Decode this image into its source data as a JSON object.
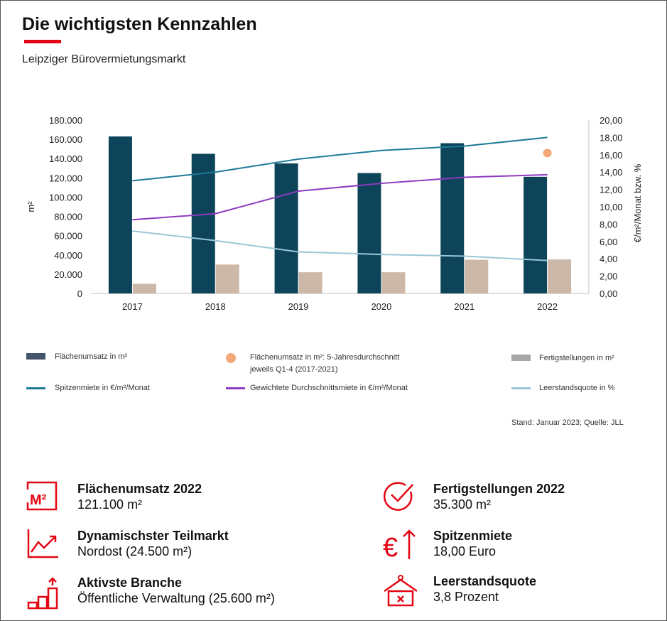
{
  "header": {
    "title": "Die wichtigsten Kennzahlen",
    "subtitle": "Leipziger Bürovermietungsmarkt"
  },
  "colors": {
    "accent": "#e30613",
    "flaechenumsatz": "#0d4459",
    "fertigstellungen": "#cdb8a8",
    "spitzenmiete": "#1e7a98",
    "durchschnittsmiete": "#8d3bc0",
    "leerstand": "#9ac7d6",
    "average_marker": "#f2a878"
  },
  "chart_data": {
    "type": "bar",
    "categories": [
      "2017",
      "2018",
      "2019",
      "2020",
      "2021",
      "2022"
    ],
    "ylabel_left": "m²",
    "ylabel_right": "€/m²/Monat bzw. %",
    "left_ticks": [
      "180.000",
      "160.000",
      "140.000",
      "120.000",
      "100.000",
      "80.000",
      "60.000",
      "40.000",
      "20.000",
      "0"
    ],
    "right_ticks": [
      "20,00",
      "18,00",
      "16,00",
      "14,00",
      "12,00",
      "10,00",
      "8,00",
      "6,00",
      "4,00",
      "2,00",
      "0,00"
    ],
    "ylim_left": [
      0,
      180000
    ],
    "ylim_right": [
      0,
      20
    ],
    "series": [
      {
        "name": "Flächenumsatz in m²",
        "axis": "left",
        "kind": "bar",
        "values": [
          163000,
          145000,
          135000,
          125000,
          156000,
          121100
        ]
      },
      {
        "name": "Fertigstellungen in m²",
        "axis": "left",
        "kind": "bar",
        "values": [
          10000,
          30000,
          22000,
          22000,
          35000,
          35300
        ]
      },
      {
        "name": "Spitzenmiete in €/m²/Monat",
        "axis": "right",
        "kind": "line",
        "values": [
          13.0,
          14.0,
          15.5,
          16.5,
          17.0,
          18.0
        ]
      },
      {
        "name": "Gewichtete Durchschnittsmiete in €/m²/Monat",
        "axis": "right",
        "kind": "line",
        "values": [
          8.5,
          9.2,
          11.8,
          12.7,
          13.4,
          13.7
        ]
      },
      {
        "name": "Leerstandsquote in %",
        "axis": "right",
        "kind": "line",
        "values": [
          7.2,
          6.1,
          4.8,
          4.5,
          4.3,
          3.8
        ]
      },
      {
        "name": "Flächenumsatz in m²: 5-Jahresdurchschnitt jeweils Q1-4 (2017-2021)",
        "axis": "right",
        "kind": "marker",
        "x": "2022",
        "value": 16.2
      }
    ],
    "grid": false,
    "legend_position": "bottom"
  },
  "legend": [
    {
      "label": "Flächenumsatz  in m²"
    },
    {
      "label": "Flächenumsatz  in m²: 5-Jahresdurchschnitt"
    },
    {
      "label": "jeweils Q1-4 (2017-2021)"
    },
    {
      "label": "Fertigstellungen  in m²"
    },
    {
      "label": "Spitzenmiete  in €/m²/Monat"
    },
    {
      "label": "Gewichtete Durchschnittsmiete  in €/m²/Monat"
    },
    {
      "label": "Leerstandsquote  in %"
    }
  ],
  "source": "Stand: Januar 2023; Quelle: JLL",
  "kpis": [
    {
      "icon": "square-meter-icon",
      "label": "Flächenumsatz 2022",
      "value": "121.100 m²"
    },
    {
      "icon": "checkmark-circle-icon",
      "label": "Fertigstellungen 2022",
      "value": "35.300 m²"
    },
    {
      "icon": "trend-chart-icon",
      "label": "Dynamischster Teilmarkt",
      "value": "Nordost (24.500 m²)"
    },
    {
      "icon": "euro-arrow-icon",
      "label": "Spitzenmiete",
      "value": "18,00 Euro"
    },
    {
      "icon": "bar-steps-icon",
      "label": "Aktivste Branche",
      "value": "Öffentliche Verwaltung (25.600 m²)"
    },
    {
      "icon": "vacancy-sign-icon",
      "label": "Leerstandsquote",
      "value": "3,8 Prozent"
    }
  ],
  "icon_labels": {
    "square_meter": "M²"
  }
}
